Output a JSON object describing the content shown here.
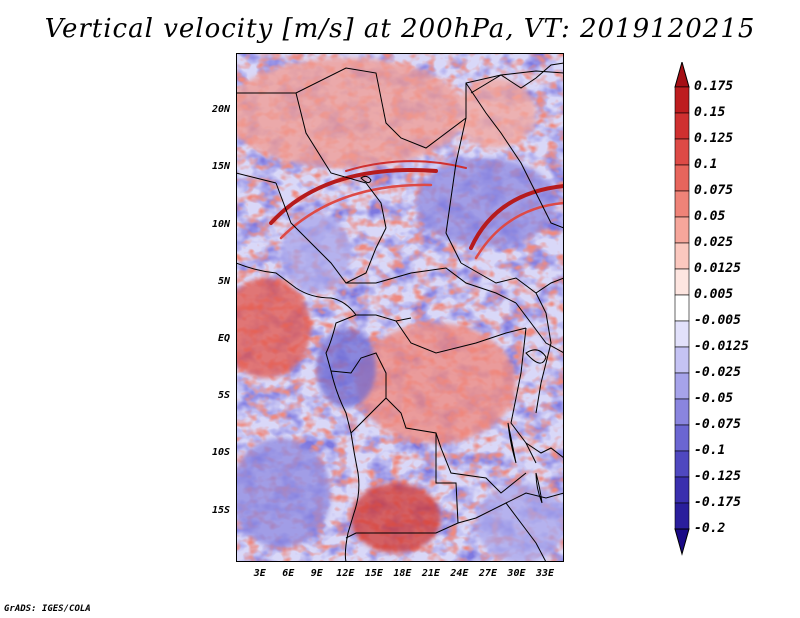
{
  "title": "Vertical velocity [m/s] at 200hPa, VT: 2019120215",
  "credit": "GrADS: IGES/COLA",
  "map": {
    "lat_labels": [
      "20N",
      "15N",
      "10N",
      "5N",
      "EQ",
      "5S",
      "10S",
      "15S"
    ],
    "lat_values": [
      20,
      15,
      10,
      5,
      0,
      -5,
      -10,
      -15
    ],
    "lon_labels": [
      "3E",
      "6E",
      "9E",
      "12E",
      "15E",
      "18E",
      "21E",
      "24E",
      "27E",
      "30E",
      "33E"
    ],
    "lon_values": [
      3,
      6,
      9,
      12,
      15,
      18,
      21,
      24,
      27,
      30,
      33
    ],
    "lat_range": [
      -19.5,
      25
    ],
    "lon_range": [
      0.5,
      35
    ]
  },
  "colorbar": {
    "labels": [
      "0.175",
      "0.15",
      "0.125",
      "0.1",
      "0.075",
      "0.05",
      "0.025",
      "0.0125",
      "0.005",
      "-0.005",
      "-0.0125",
      "-0.025",
      "-0.05",
      "-0.075",
      "-0.1",
      "-0.125",
      "-0.175",
      "-0.2"
    ],
    "colors": [
      "#a50f15",
      "#bd1d1f",
      "#cf3030",
      "#dd4a46",
      "#e7655c",
      "#ef8378",
      "#f6a69b",
      "#fbc8bf",
      "#fde5e0",
      "#ffffff",
      "#e2e1fb",
      "#c5c3f4",
      "#a6a3ea",
      "#8a85df",
      "#6b66d2",
      "#4f48c0",
      "#3a2fae",
      "#2a1e9c",
      "#1a0a86"
    ]
  }
}
